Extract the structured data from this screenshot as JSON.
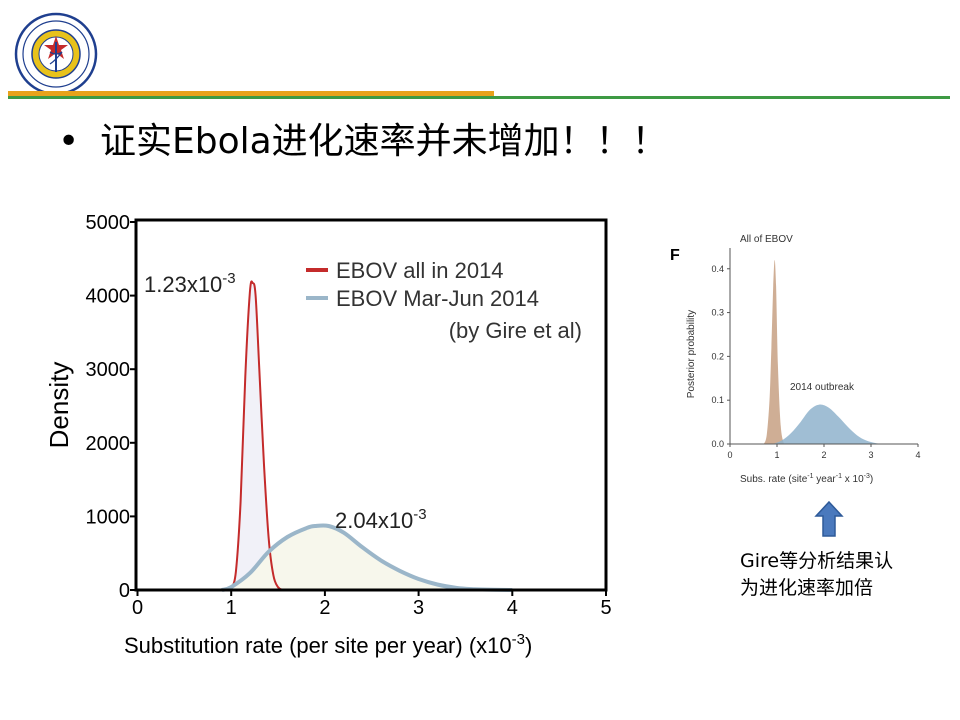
{
  "header": {
    "logo": {
      "icon": "medical-emblem-icon",
      "ring_color": "#1f3f8f",
      "center_color": "#e8c21b"
    },
    "accent_orange": "#e8a21b",
    "accent_green": "#3e9a44"
  },
  "headline": {
    "bullet": "•",
    "text": "证实Ebola进化速率并未增加！！！"
  },
  "chart_data": [
    {
      "type": "area",
      "title": "",
      "xlabel": "Substitution rate (per site per year) (x10",
      "xlabel_exp": "-3",
      "xlabel_close": ")",
      "ylabel": "Density",
      "xlim": [
        0,
        5
      ],
      "ylim": [
        0,
        5000
      ],
      "xticks": [
        "0",
        "1",
        "2",
        "3",
        "4",
        "5"
      ],
      "yticks": [
        "0",
        "1000",
        "2000",
        "3000",
        "4000",
        "5000"
      ],
      "grid": false,
      "legend_position": "top-right",
      "series": [
        {
          "name": "EBOV all in 2014",
          "color": "#c42b2b",
          "fill": "#f1f1f8",
          "x": [
            0.95,
            1.0,
            1.05,
            1.1,
            1.15,
            1.2,
            1.23,
            1.26,
            1.3,
            1.35,
            1.4,
            1.45,
            1.5,
            1.55
          ],
          "y": [
            0,
            30,
            250,
            1200,
            2900,
            4050,
            4170,
            4000,
            3000,
            1700,
            700,
            200,
            40,
            0
          ]
        },
        {
          "name": "EBOV Mar-Jun 2014",
          "color": "#9bb6c9",
          "fill": "#f7f7ec",
          "x": [
            0.9,
            1.0,
            1.2,
            1.4,
            1.6,
            1.8,
            1.9,
            2.04,
            2.2,
            2.4,
            2.6,
            2.8,
            3.0,
            3.2,
            3.4,
            3.6,
            3.8,
            4.0
          ],
          "y": [
            0,
            40,
            230,
            520,
            720,
            840,
            870,
            870,
            780,
            580,
            400,
            260,
            150,
            75,
            30,
            10,
            3,
            0
          ]
        }
      ],
      "legend_note": "(by Gire et al)",
      "annotations": [
        {
          "base": "1.23x10",
          "exp": "-3",
          "x": 1.23
        },
        {
          "base": "2.04x10",
          "exp": "-3",
          "x": 2.04
        }
      ]
    },
    {
      "type": "area",
      "panel_label": "F",
      "xlabel": "Subs. rate (site",
      "xlabel_mid": " year",
      "xlabel_end": " x 10",
      "xlabel_exp1": "-1",
      "xlabel_exp2": "-1",
      "xlabel_exp3": "-3",
      "xlabel_close": ")",
      "ylabel": "Posterior probability",
      "xlim": [
        0,
        4
      ],
      "ylim": [
        0,
        0.42
      ],
      "xticks": [
        "0",
        "1",
        "2",
        "3",
        "4"
      ],
      "yticks": [
        "0.0",
        "0.1",
        "0.2",
        "0.3",
        "0.4"
      ],
      "series": [
        {
          "name": "All of EBOV",
          "color": "#c7a083",
          "x": [
            0.72,
            0.78,
            0.84,
            0.88,
            0.92,
            0.95,
            0.98,
            1.02,
            1.08,
            1.15
          ],
          "y": [
            0,
            0.02,
            0.1,
            0.22,
            0.36,
            0.42,
            0.36,
            0.18,
            0.04,
            0
          ]
        },
        {
          "name": "2014 outbreak",
          "color": "#8fb3cc",
          "x": [
            0.9,
            1.1,
            1.3,
            1.5,
            1.7,
            1.9,
            2.1,
            2.3,
            2.5,
            2.7,
            2.9,
            3.1,
            3.3
          ],
          "y": [
            0,
            0.008,
            0.025,
            0.05,
            0.078,
            0.09,
            0.083,
            0.063,
            0.04,
            0.02,
            0.008,
            0.002,
            0
          ]
        }
      ]
    }
  ],
  "note": {
    "arrow_icon": "up-arrow-icon",
    "arrow_color": "#4a79bd",
    "line1": "Gire等分析结果认",
    "line2": "为进化速率加倍"
  }
}
